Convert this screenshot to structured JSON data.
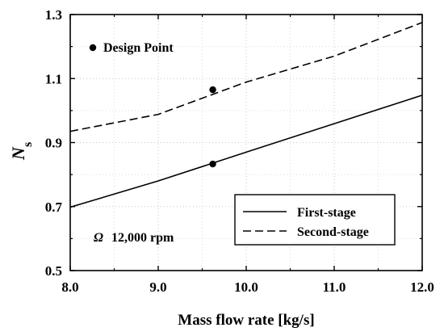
{
  "chart_data": {
    "type": "line",
    "xlabel": "Mass flow rate [kg/s]",
    "ylabel": {
      "main": "N",
      "sub": "s"
    },
    "xlim": [
      8.0,
      12.0
    ],
    "ylim": [
      0.5,
      1.3
    ],
    "xticks": [
      8.0,
      9.0,
      10.0,
      11.0,
      12.0
    ],
    "xtick_labels": [
      "8.0",
      "9.0",
      "10.0",
      "11.0",
      "12.0"
    ],
    "yticks": [
      0.5,
      0.7,
      0.9,
      1.1,
      1.3
    ],
    "ytick_labels": [
      "0.5",
      "0.7",
      "0.9",
      "1.1",
      "1.3"
    ],
    "grid": true,
    "series": [
      {
        "name": "First-stage",
        "style": "solid",
        "color": "#000000",
        "x": [
          8.0,
          9.0,
          10.0,
          11.0,
          12.0
        ],
        "y": [
          0.698,
          0.78,
          0.87,
          0.959,
          1.048
        ]
      },
      {
        "name": "Second-stage",
        "style": "dashed",
        "color": "#000000",
        "x": [
          8.0,
          9.0,
          10.0,
          11.0,
          12.0
        ],
        "y": [
          0.935,
          0.988,
          1.089,
          1.17,
          1.275
        ]
      }
    ],
    "design_points": [
      {
        "x": 9.62,
        "y": 0.833
      },
      {
        "x": 9.62,
        "y": 1.065
      }
    ],
    "legend": {
      "placement": "bottom-right",
      "entries": [
        {
          "label": "First-stage",
          "style": "solid"
        },
        {
          "label": "Second-stage",
          "style": "dashed"
        }
      ]
    },
    "annotations": {
      "design_point_label": "Design Point",
      "speed_label": "12,000 rpm",
      "speed_symbol": "Ω"
    }
  }
}
